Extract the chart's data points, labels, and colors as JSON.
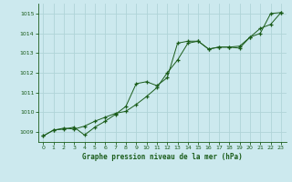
{
  "title": "Graphe pression niveau de la mer (hPa)",
  "bg_color": "#cce9ee",
  "grid_color": "#b0d4d8",
  "line_color": "#1a5c1a",
  "xlim": [
    -0.5,
    23.5
  ],
  "ylim": [
    1008.5,
    1015.5
  ],
  "yticks": [
    1009,
    1010,
    1011,
    1012,
    1013,
    1014,
    1015
  ],
  "xticks": [
    0,
    1,
    2,
    3,
    4,
    5,
    6,
    7,
    8,
    9,
    10,
    11,
    12,
    13,
    14,
    15,
    16,
    17,
    18,
    19,
    20,
    21,
    22,
    23
  ],
  "line1_x": [
    0,
    1,
    2,
    3,
    4,
    5,
    6,
    7,
    8,
    9,
    10,
    11,
    12,
    13,
    14,
    15,
    16,
    17,
    18,
    19,
    20,
    21,
    22,
    23
  ],
  "line1_y": [
    1008.8,
    1009.1,
    1009.2,
    1009.15,
    1009.3,
    1009.55,
    1009.75,
    1009.95,
    1010.05,
    1010.4,
    1010.8,
    1011.25,
    1012.0,
    1012.65,
    1013.5,
    1013.6,
    1013.2,
    1013.3,
    1013.3,
    1013.25,
    1013.8,
    1014.0,
    1015.0,
    1015.05
  ],
  "line2_x": [
    0,
    1,
    2,
    3,
    4,
    5,
    6,
    7,
    8,
    9,
    10,
    11,
    12,
    13,
    14,
    15,
    16,
    17,
    18,
    19,
    20,
    21,
    22,
    23
  ],
  "line2_y": [
    1008.8,
    1009.1,
    1009.15,
    1009.25,
    1008.85,
    1009.25,
    1009.55,
    1009.9,
    1010.3,
    1011.45,
    1011.55,
    1011.35,
    1011.75,
    1013.5,
    1013.6,
    1013.6,
    1013.2,
    1013.3,
    1013.3,
    1013.35,
    1013.8,
    1014.25,
    1014.45,
    1015.05
  ]
}
